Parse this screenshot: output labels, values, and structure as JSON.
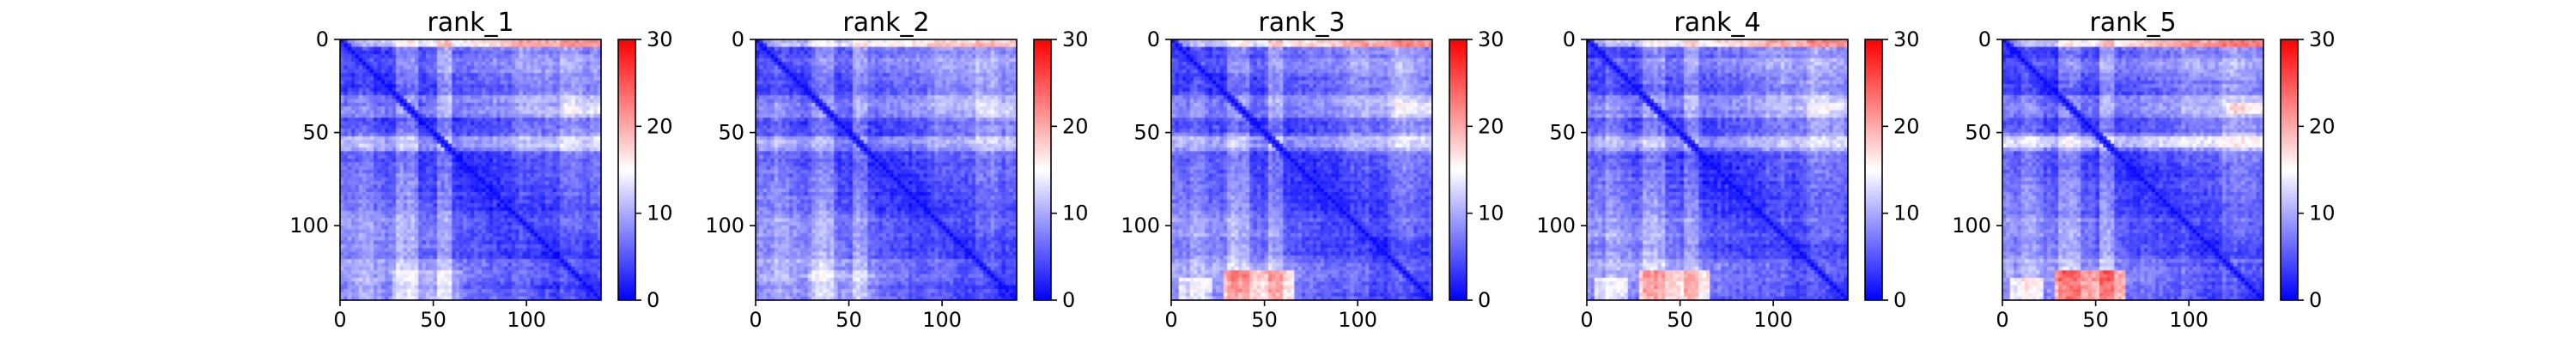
{
  "chart_data": [
    {
      "type": "heatmap",
      "title": "rank_1",
      "x_range": [
        0,
        140
      ],
      "y_range": [
        0,
        140
      ],
      "x_ticks": [
        0,
        50,
        100
      ],
      "y_ticks": [
        0,
        50,
        100
      ],
      "colorbar": {
        "range": [
          0,
          30
        ],
        "ticks": [
          0,
          10,
          20,
          30
        ],
        "colormap": "bwr"
      },
      "features": {
        "warm_top_edge": 0.55,
        "warm_bottom_patch": 0.15,
        "warm_mid_band": 0.2
      }
    },
    {
      "type": "heatmap",
      "title": "rank_2",
      "x_range": [
        0,
        140
      ],
      "y_range": [
        0,
        140
      ],
      "x_ticks": [
        0,
        50,
        100
      ],
      "y_ticks": [
        0,
        50,
        100
      ],
      "colorbar": {
        "range": [
          0,
          30
        ],
        "ticks": [
          0,
          10,
          20,
          30
        ],
        "colormap": "bwr"
      },
      "features": {
        "warm_top_edge": 0.35,
        "warm_bottom_patch": 0.1,
        "warm_mid_band": 0.1
      }
    },
    {
      "type": "heatmap",
      "title": "rank_3",
      "x_range": [
        0,
        140
      ],
      "y_range": [
        0,
        140
      ],
      "x_ticks": [
        0,
        50,
        100
      ],
      "y_ticks": [
        0,
        50,
        100
      ],
      "colorbar": {
        "range": [
          0,
          30
        ],
        "ticks": [
          0,
          10,
          20,
          30
        ],
        "colormap": "bwr"
      },
      "features": {
        "warm_top_edge": 0.6,
        "warm_bottom_patch": 0.6,
        "warm_mid_band": 0.2
      }
    },
    {
      "type": "heatmap",
      "title": "rank_4",
      "x_range": [
        0,
        140
      ],
      "y_range": [
        0,
        140
      ],
      "x_ticks": [
        0,
        50,
        100
      ],
      "y_ticks": [
        0,
        50,
        100
      ],
      "colorbar": {
        "range": [
          0,
          30
        ],
        "ticks": [
          0,
          10,
          20,
          30
        ],
        "colormap": "bwr"
      },
      "features": {
        "warm_top_edge": 0.55,
        "warm_bottom_patch": 0.55,
        "warm_mid_band": 0.2
      }
    },
    {
      "type": "heatmap",
      "title": "rank_5",
      "x_range": [
        0,
        140
      ],
      "y_range": [
        0,
        140
      ],
      "x_ticks": [
        0,
        50,
        100
      ],
      "y_ticks": [
        0,
        50,
        100
      ],
      "colorbar": {
        "range": [
          0,
          30
        ],
        "ticks": [
          0,
          10,
          20,
          30
        ],
        "colormap": "bwr"
      },
      "features": {
        "warm_top_edge": 0.65,
        "warm_bottom_patch": 0.75,
        "warm_mid_band": 0.45
      }
    }
  ]
}
